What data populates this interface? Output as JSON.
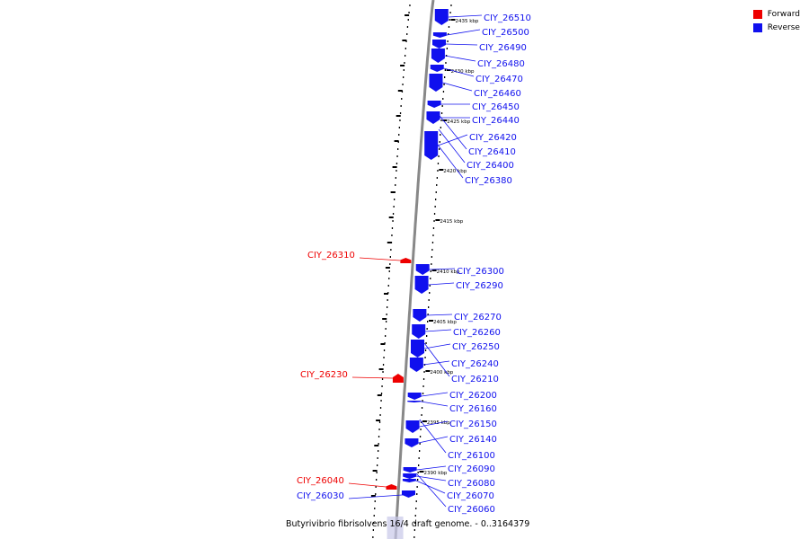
{
  "caption": "Butyrivibrio fibrisolvens 16/4 draft genome. - 0..3164379",
  "legend": [
    {
      "label": "Forward",
      "color": "#ee0000"
    },
    {
      "label": "Reverse",
      "color": "#1010ee"
    }
  ],
  "colors": {
    "forward": "#ee0000",
    "reverse": "#1010ee",
    "axis": "#888888"
  },
  "ticks": [
    "2435 kbp",
    "2430 kbp",
    "2425 kbp",
    "2420 kbp",
    "2415 kbp",
    "2410 kbp",
    "2405 kbp",
    "2400 kbp",
    "2395 kbp",
    "2390 kbp"
  ],
  "genes": [
    {
      "label": "CIY_26510",
      "strand": "reverse"
    },
    {
      "label": "CIY_26500",
      "strand": "reverse"
    },
    {
      "label": "CIY_26490",
      "strand": "reverse"
    },
    {
      "label": "CIY_26480",
      "strand": "reverse"
    },
    {
      "label": "CIY_26470",
      "strand": "reverse"
    },
    {
      "label": "CIY_26460",
      "strand": "reverse"
    },
    {
      "label": "CIY_26450",
      "strand": "reverse"
    },
    {
      "label": "CIY_26440",
      "strand": "reverse"
    },
    {
      "label": "CIY_26420",
      "strand": "reverse"
    },
    {
      "label": "CIY_26410",
      "strand": "reverse"
    },
    {
      "label": "CIY_26400",
      "strand": "reverse"
    },
    {
      "label": "CIY_26380",
      "strand": "reverse"
    },
    {
      "label": "CIY_26310",
      "strand": "forward"
    },
    {
      "label": "CIY_26300",
      "strand": "reverse"
    },
    {
      "label": "CIY_26290",
      "strand": "reverse"
    },
    {
      "label": "CIY_26270",
      "strand": "reverse"
    },
    {
      "label": "CIY_26260",
      "strand": "reverse"
    },
    {
      "label": "CIY_26250",
      "strand": "reverse"
    },
    {
      "label": "CIY_26240",
      "strand": "reverse"
    },
    {
      "label": "CIY_26230",
      "strand": "forward"
    },
    {
      "label": "CIY_26210",
      "strand": "reverse"
    },
    {
      "label": "CIY_26200",
      "strand": "reverse"
    },
    {
      "label": "CIY_26160",
      "strand": "reverse"
    },
    {
      "label": "CIY_26150",
      "strand": "reverse"
    },
    {
      "label": "CIY_26140",
      "strand": "reverse"
    },
    {
      "label": "CIY_26100",
      "strand": "reverse"
    },
    {
      "label": "CIY_26090",
      "strand": "reverse"
    },
    {
      "label": "CIY_26080",
      "strand": "reverse"
    },
    {
      "label": "CIY_26070",
      "strand": "reverse"
    },
    {
      "label": "CIY_26040",
      "strand": "forward"
    },
    {
      "label": "CIY_26030",
      "strand": "reverse"
    },
    {
      "label": "CIY_26060",
      "strand": "reverse"
    }
  ]
}
